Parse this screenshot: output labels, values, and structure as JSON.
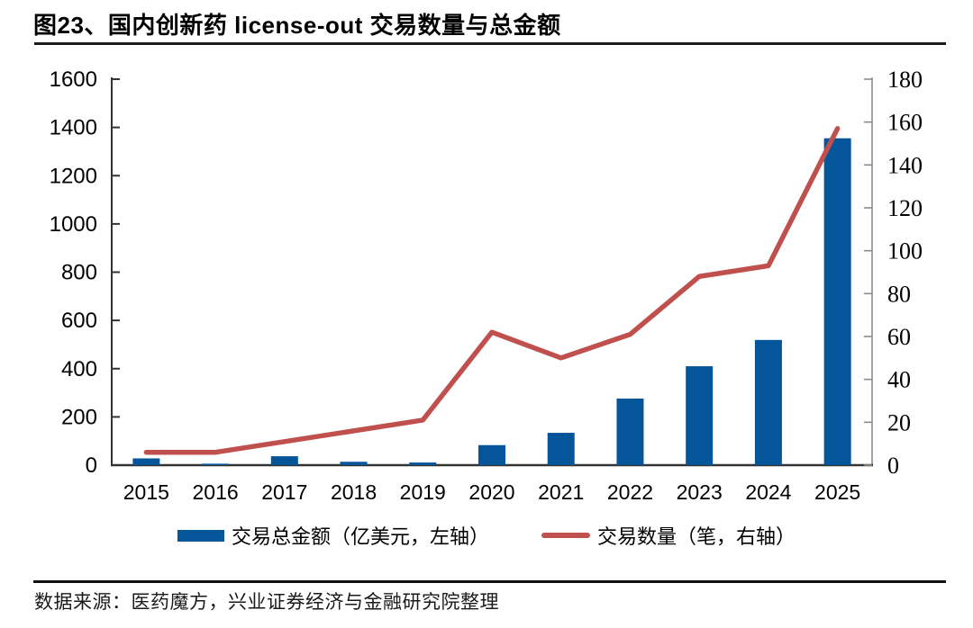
{
  "header": {
    "title": "图23、国内创新药 license-out 交易数量与总金额"
  },
  "legend": {
    "bar_label": "交易总金额（亿美元，左轴）",
    "line_label": "交易数量（笔，右轴）"
  },
  "footer": {
    "source": "数据来源：医药魔方，兴业证券经济与金融研究院整理"
  },
  "colors": {
    "bar": "#05559b",
    "line": "#c0504d",
    "axis": "#333333",
    "right_axis": "#8a8a8a",
    "text": "#000000"
  },
  "chart_data": {
    "type": "bar",
    "subtype": "bar+line dual-axis combo",
    "title": "图23、国内创新药 license-out 交易数量与总金额",
    "categories": [
      "2015",
      "2016",
      "2017",
      "2018",
      "2019",
      "2020",
      "2021",
      "2022",
      "2023",
      "2024",
      "2025"
    ],
    "series": [
      {
        "name": "交易总金额（亿美元，左轴）",
        "type": "bar",
        "axis": "left",
        "values": [
          28,
          6,
          37,
          14,
          11,
          83,
          134,
          276,
          410,
          519,
          1355
        ]
      },
      {
        "name": "交易数量（笔，右轴）",
        "type": "line",
        "axis": "right",
        "values": [
          6,
          6,
          11,
          16,
          21,
          62,
          50,
          61,
          88,
          93,
          157
        ]
      }
    ],
    "left_axis": {
      "min": 0,
      "max": 1600,
      "step": 200
    },
    "right_axis": {
      "min": 0,
      "max": 180,
      "step": 20
    },
    "xlabel": "",
    "ylabel": "",
    "grid": false,
    "legend_position": "bottom"
  }
}
